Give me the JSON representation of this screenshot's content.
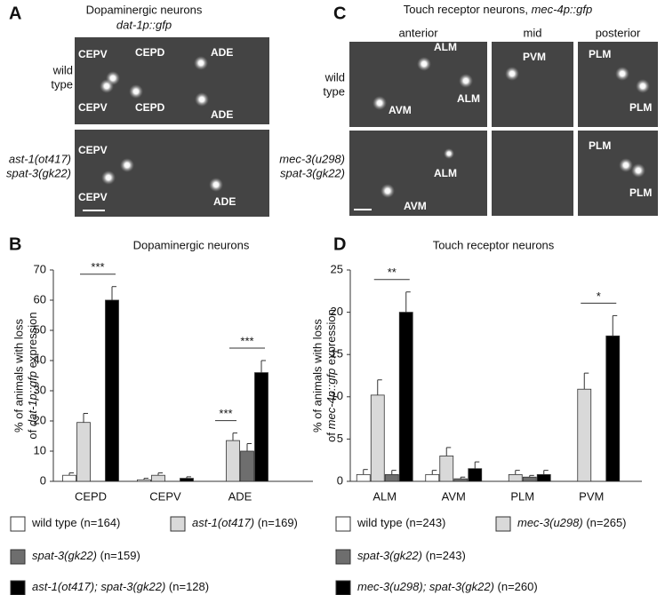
{
  "panel_a": {
    "letter": "A",
    "title": "Dopaminergic neurons",
    "subtitle": "dat-1p::gfp",
    "rows": [
      [
        "wild",
        "type"
      ],
      [
        "ast-1(ot417)",
        "spat-3(gk22)"
      ]
    ],
    "labels": [
      [
        "CEPV",
        "CEPD",
        "ADE",
        "CEPV",
        "CEPD",
        "ADE"
      ],
      [
        "CEPV",
        "CEPV",
        "ADE"
      ]
    ]
  },
  "panel_c": {
    "letter": "C",
    "title": "Touch receptor neurons, ",
    "reporter": "mec-4p::gfp",
    "columns": [
      "anterior",
      "mid",
      "posterior"
    ],
    "rows": [
      [
        "wild",
        "type"
      ],
      [
        "mec-3(u298)",
        "spat-3(gk22)"
      ]
    ],
    "labels": [
      [
        [
          "ALM",
          "ALM",
          "AVM"
        ],
        [
          "PVM"
        ],
        [
          "PLM",
          "PLM"
        ]
      ],
      [
        [
          "ALM",
          "AVM"
        ],
        [],
        [
          "PLM",
          "PLM"
        ]
      ]
    ]
  },
  "chart_data": [
    {
      "type": "bar",
      "panel": "B",
      "title": "Dopaminergic neurons",
      "y_label": {
        "line1": "% of animals  with loss",
        "prefix": "of",
        "reporter": "dat-1p::gfp",
        "suffix": "expression"
      },
      "categories": [
        "CEPD",
        "CEPV",
        "ADE"
      ],
      "series": [
        {
          "name": "wild type",
          "n": "(n=164)",
          "italic": false,
          "color": "#ffffff",
          "values": [
            2,
            0.5,
            0
          ],
          "errors": [
            0.8,
            0.5,
            0
          ]
        },
        {
          "name": "ast-1(ot417)",
          "n": "(n=169)",
          "italic": true,
          "color": "#d9d9d9",
          "values": [
            19.5,
            2,
            13.5
          ],
          "errors": [
            3,
            0.8,
            2.5
          ]
        },
        {
          "name": "spat-3(gk22)",
          "n": "(n=159)",
          "italic": true,
          "color": "#6e6e6e",
          "values": [
            0,
            0,
            10
          ],
          "errors": [
            0,
            0,
            2.5
          ]
        },
        {
          "name": "ast-1(ot417); spat-3(gk22)",
          "n": "(n=128)",
          "italic": true,
          "color": "#000000",
          "values": [
            60,
            1,
            36
          ],
          "errors": [
            4.5,
            0.5,
            4
          ]
        }
      ],
      "ylim": [
        0,
        70
      ],
      "yticks": [
        0,
        10,
        20,
        30,
        40,
        50,
        60,
        70
      ],
      "annotations": [
        {
          "label": "***",
          "category": "CEPD",
          "between": [
            "ast-1(ot417)",
            "ast-1(ot417); spat-3(gk22)"
          ]
        },
        {
          "label": "***",
          "category": "ADE",
          "between": [
            "wild type",
            "ast-1(ot417)"
          ]
        },
        {
          "label": "***",
          "category": "ADE",
          "between": [
            "ast-1(ot417)",
            "ast-1(ot417); spat-3(gk22)"
          ]
        }
      ]
    },
    {
      "type": "bar",
      "panel": "D",
      "title": "Touch receptor neurons",
      "y_label": {
        "line1": "% of animals  with loss",
        "prefix": "of",
        "reporter": "mec-4p::gfp",
        "suffix": "expression"
      },
      "categories": [
        "ALM",
        "AVM",
        "PLM",
        "PVM"
      ],
      "series": [
        {
          "name": "wild type",
          "n": "(n=243)",
          "italic": false,
          "color": "#ffffff",
          "values": [
            0.8,
            0.8,
            0,
            0
          ],
          "errors": [
            0.6,
            0.5,
            0,
            0
          ]
        },
        {
          "name": "mec-3(u298)",
          "n": "(n=265)",
          "italic": true,
          "color": "#d9d9d9",
          "values": [
            10.2,
            3,
            0.8,
            10.9
          ],
          "errors": [
            1.8,
            1,
            0.5,
            1.9
          ]
        },
        {
          "name": "spat-3(gk22)",
          "n": "(n=243)",
          "italic": true,
          "color": "#6e6e6e",
          "values": [
            0.8,
            0.3,
            0.5,
            0
          ],
          "errors": [
            0.5,
            0.2,
            0.2,
            0
          ]
        },
        {
          "name": "mec-3(u298); spat-3(gk22)",
          "n": "(n=260)",
          "italic": true,
          "color": "#000000",
          "values": [
            20,
            1.5,
            0.8,
            17.2
          ],
          "errors": [
            2.4,
            0.8,
            0.5,
            2.4
          ]
        }
      ],
      "ylim": [
        0,
        25
      ],
      "yticks": [
        0,
        5,
        10,
        15,
        20,
        25
      ],
      "annotations": [
        {
          "label": "**",
          "category": "ALM",
          "between": [
            "mec-3(u298)",
            "mec-3(u298); spat-3(gk22)"
          ]
        },
        {
          "label": "*",
          "category": "PVM",
          "between": [
            "mec-3(u298)",
            "mec-3(u298); spat-3(gk22)"
          ]
        }
      ]
    }
  ]
}
